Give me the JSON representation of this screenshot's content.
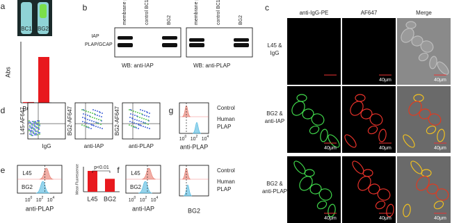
{
  "log_ticks": [
    {
      "base": "10",
      "exp": "0"
    },
    {
      "base": "10",
      "exp": "2"
    },
    {
      "base": "10",
      "exp": "4"
    }
  ],
  "panel_a": {
    "label": "a",
    "tube_labels": [
      "BC1",
      "BG2"
    ],
    "ylabel": "Abs",
    "categories": [
      "BC1",
      "BG2"
    ],
    "values": [
      0.05,
      3.0
    ],
    "ylim": [
      0,
      4
    ],
    "color": "#e8191e"
  },
  "panel_b": {
    "label": "b",
    "bands": [
      "IAP",
      "PLAP/GCAP"
    ],
    "blots": [
      {
        "lanes": [
          "membrane protein",
          "control BC1",
          "BG2"
        ],
        "caption": "WB: anti-IAP"
      },
      {
        "lanes": [
          "membrane protein",
          "control BC1",
          "BG2"
        ],
        "caption": "WB: anti-PLAP"
      }
    ]
  },
  "panel_c": {
    "label": "c",
    "columns": [
      "anti-IgG-PE",
      "AF647",
      "Merge"
    ],
    "rows": [
      {
        "label": [
          "L45 &",
          "IgG"
        ],
        "scale_bars": [
          null,
          "40μm",
          "40μm"
        ]
      },
      {
        "label": [
          "BG2 &",
          "anti-IAP"
        ],
        "scale_bars": [
          "40μm",
          "40μm",
          "40μm"
        ]
      },
      {
        "label": [
          "BG2 &",
          "anti-PLAP"
        ],
        "scale_bars": [
          "40μm",
          "40μm",
          "40μm"
        ]
      }
    ]
  },
  "panel_d": {
    "label": "d",
    "plots": [
      {
        "ylabel": "L45-AF647",
        "xlabel": "IgG"
      },
      {
        "ylabel": "BG2-AF647",
        "xlabel": "anti-IAP"
      },
      {
        "ylabel": "BG2-AF647",
        "xlabel": "anti-PLAP"
      }
    ]
  },
  "panel_e": {
    "label": "e",
    "peaks": [
      "L45",
      "BG2"
    ],
    "xlabel": "anti-PLAP",
    "bar": {
      "ylabel": "Mean Fluorescence",
      "annotation": "p<0.01",
      "categories": [
        "L45",
        "BG2"
      ],
      "values": [
        1.0,
        0.62
      ],
      "ylim": [
        0,
        1.2
      ],
      "color": "#e8191e"
    }
  },
  "panel_f": {
    "label": "f",
    "peaks": [
      "L45",
      "BG2"
    ],
    "xlabel": "anti-IAP"
  },
  "panel_g": {
    "label": "g",
    "plots": [
      {
        "legend": [
          [
            "Control"
          ],
          [
            "Human",
            "PLAP"
          ]
        ],
        "xlabel": "anti-PLAP"
      },
      {
        "legend": [
          [
            "Control"
          ],
          [
            "Human",
            "PLAP"
          ]
        ],
        "xlabel": "BG2"
      }
    ]
  }
}
